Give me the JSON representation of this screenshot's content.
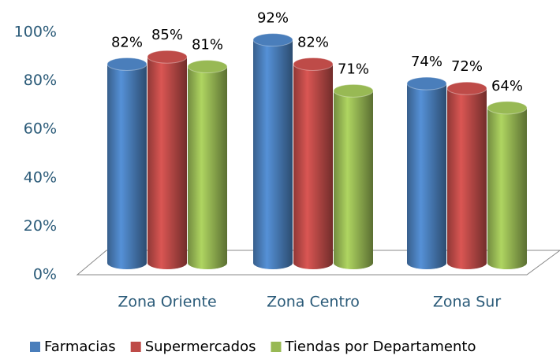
{
  "chart_data": {
    "type": "bar3d",
    "categories": [
      "Zona Oriente",
      "Zona Centro",
      "Zona Sur"
    ],
    "series": [
      {
        "name": "Farmacias",
        "color": "#4a7ebb",
        "values": [
          82,
          92,
          74
        ],
        "value_labels": [
          "82%",
          "92%",
          "74%"
        ]
      },
      {
        "name": "Supermercados",
        "color": "#be4b48",
        "values": [
          85,
          82,
          72
        ],
        "value_labels": [
          "85%",
          "82%",
          "72%"
        ]
      },
      {
        "name": "Tiendas por Departamento",
        "color": "#98b954",
        "values": [
          81,
          71,
          64
        ],
        "value_labels": [
          "81%",
          "71%",
          "64%"
        ]
      }
    ],
    "ylim": [
      0,
      100
    ],
    "yticks": [
      {
        "value": 0,
        "label": "0%"
      },
      {
        "value": 20,
        "label": "20%"
      },
      {
        "value": 40,
        "label": "40%"
      },
      {
        "value": 60,
        "label": "60%"
      },
      {
        "value": 80,
        "label": "80%"
      },
      {
        "value": 100,
        "label": "100%"
      }
    ],
    "legend": "bottom"
  }
}
